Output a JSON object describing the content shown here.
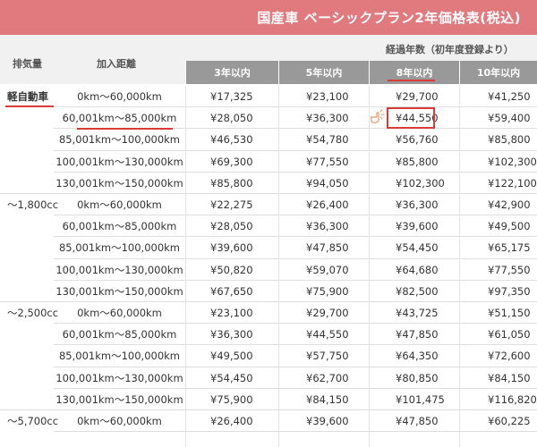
{
  "title": "国産車 ベーシックプラン2年価格表(税込)",
  "header": {
    "displacement": "排気量",
    "distance": "加入距離",
    "years_group": "経過年数（初年度登録より）",
    "years": [
      "3年以内",
      "5年以内",
      "8年以内",
      "10年以内"
    ]
  },
  "rows": [
    {
      "displacement": "軽自動車",
      "distance": "0km〜60,000km",
      "prices": [
        "¥17,325",
        "¥23,100",
        "¥29,700",
        "¥41,250"
      ]
    },
    {
      "displacement": "",
      "distance": "60,001km〜85,000km",
      "prices": [
        "¥28,050",
        "¥36,300",
        "¥44,550",
        "¥59,400"
      ]
    },
    {
      "displacement": "",
      "distance": "85,001km〜100,000km",
      "prices": [
        "¥46,530",
        "¥54,780",
        "¥56,760",
        "¥85,800"
      ]
    },
    {
      "displacement": "",
      "distance": "100,001km〜130,000km",
      "prices": [
        "¥69,300",
        "¥77,550",
        "¥85,800",
        "¥102,300"
      ]
    },
    {
      "displacement": "",
      "distance": "130,001km〜150,000km",
      "prices": [
        "¥85,800",
        "¥94,050",
        "¥102,300",
        "¥122,100"
      ]
    },
    {
      "displacement": "〜1,800cc",
      "distance": "0km〜60,000km",
      "prices": [
        "¥22,275",
        "¥26,400",
        "¥36,300",
        "¥42,900"
      ]
    },
    {
      "displacement": "",
      "distance": "60,001km〜85,000km",
      "prices": [
        "¥28,050",
        "¥36,300",
        "¥39,600",
        "¥49,500"
      ]
    },
    {
      "displacement": "",
      "distance": "85,001km〜100,000km",
      "prices": [
        "¥39,600",
        "¥47,850",
        "¥54,450",
        "¥65,175"
      ]
    },
    {
      "displacement": "",
      "distance": "100,001km〜130,000km",
      "prices": [
        "¥50,820",
        "¥59,070",
        "¥64,680",
        "¥77,550"
      ]
    },
    {
      "displacement": "",
      "distance": "130,001km〜150,000km",
      "prices": [
        "¥67,650",
        "¥75,900",
        "¥82,500",
        "¥97,350"
      ]
    },
    {
      "displacement": "〜2,500cc",
      "distance": "0km〜60,000km",
      "prices": [
        "¥23,100",
        "¥29,700",
        "¥43,725",
        "¥51,150"
      ]
    },
    {
      "displacement": "",
      "distance": "60,001km〜85,000km",
      "prices": [
        "¥36,300",
        "¥44,550",
        "¥47,850",
        "¥61,050"
      ]
    },
    {
      "displacement": "",
      "distance": "85,001km〜100,000km",
      "prices": [
        "¥49,500",
        "¥57,750",
        "¥64,350",
        "¥72,600"
      ]
    },
    {
      "displacement": "",
      "distance": "100,001km〜130,000km",
      "prices": [
        "¥54,450",
        "¥62,700",
        "¥80,850",
        "¥84,150"
      ]
    },
    {
      "displacement": "",
      "distance": "130,001km〜150,000km",
      "prices": [
        "¥75,900",
        "¥84,150",
        "¥101,475",
        "¥116,820"
      ]
    },
    {
      "displacement": "〜5,700cc",
      "distance": "0km〜60,000km",
      "prices": [
        "¥26,400",
        "¥39,600",
        "¥47,850",
        "¥60,225"
      ]
    }
  ],
  "colors": {
    "title_bg": "#e07a7f",
    "header_bg": "#f1f1f1",
    "year_header_bg": "#999999",
    "accent_red": "#d93a3a"
  },
  "icons": {
    "pointer": "pointing-hand-icon"
  }
}
